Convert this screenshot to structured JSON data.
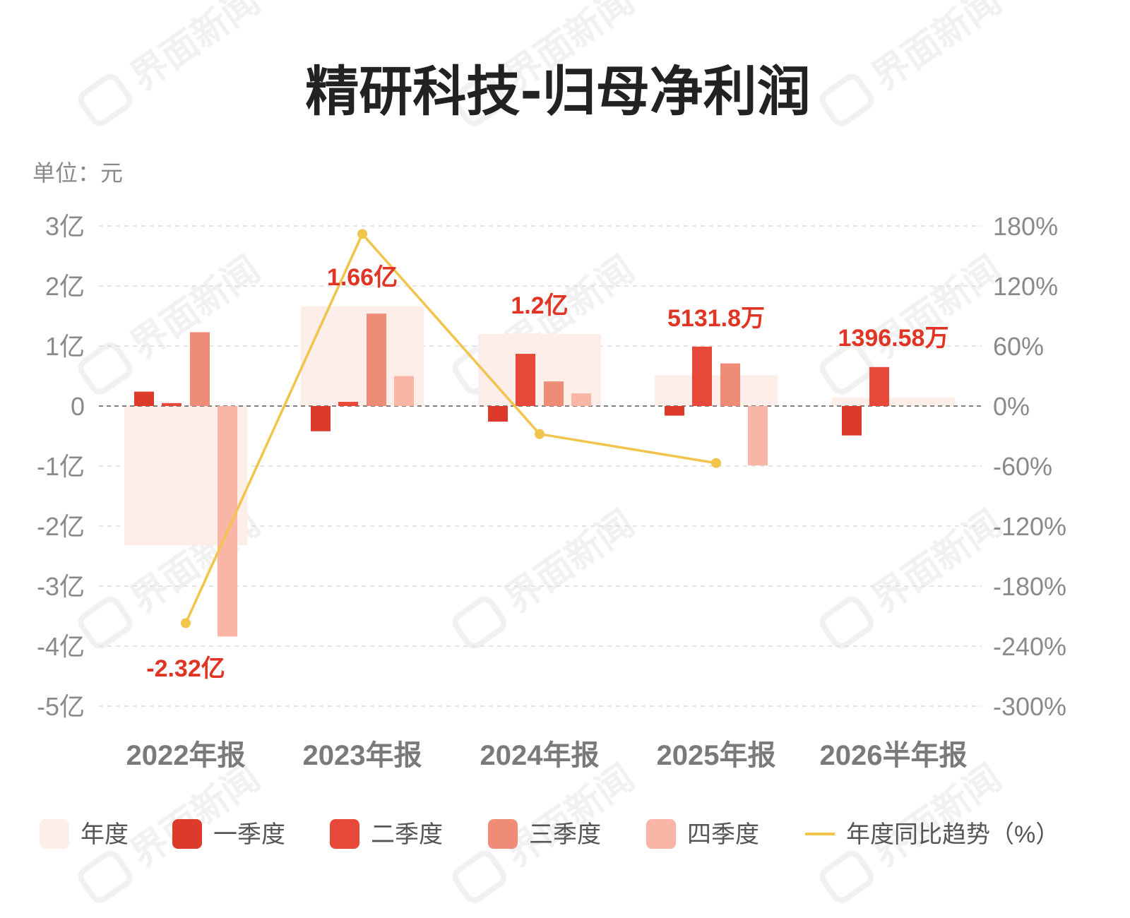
{
  "unit_label": "单位：元",
  "colors": {
    "annual": "#fdeeea",
    "q1": "#dc3a2a",
    "q2": "#e8483a",
    "q3": "#ef8c78",
    "q4": "#f9b5a6",
    "trend": "#f1c44c",
    "label": "#e03524"
  },
  "chart_data": {
    "type": "bar",
    "title": "精研科技-归母净利润",
    "categories": [
      "2022年报",
      "2023年报",
      "2024年报",
      "2025年报",
      "2026半年报"
    ],
    "y_left_ticks": [
      "3亿",
      "2亿",
      "1亿",
      "0",
      "-1亿",
      "-2亿",
      "-3亿",
      "-4亿",
      "-5亿"
    ],
    "y_right_ticks": [
      "180%",
      "120%",
      "60%",
      "0%",
      "-60%",
      "-120%",
      "-180%",
      "-240%",
      "-300%"
    ],
    "ylim_left": [
      -5,
      3
    ],
    "ylim_right": [
      -300,
      180
    ],
    "value_unit": "亿元",
    "series": [
      {
        "name": "年度",
        "key": "annual",
        "values": [
          -2.32,
          1.66,
          1.2,
          0.513,
          0.14
        ]
      },
      {
        "name": "一季度",
        "key": "q1",
        "values": [
          0.24,
          -0.42,
          -0.26,
          -0.16,
          -0.49
        ]
      },
      {
        "name": "二季度",
        "key": "q2",
        "values": [
          0.05,
          0.07,
          0.87,
          0.99,
          0.65
        ]
      },
      {
        "name": "三季度",
        "key": "q3",
        "values": [
          1.23,
          1.54,
          0.41,
          0.71,
          null
        ]
      },
      {
        "name": "四季度",
        "key": "q4",
        "values": [
          -3.84,
          0.5,
          0.21,
          -0.99,
          null
        ]
      }
    ],
    "trend": {
      "name": "年度同比趋势（%）",
      "key": "trend",
      "values": [
        -217,
        172,
        -28,
        -57,
        null
      ]
    },
    "annual_labels": [
      "-2.32亿",
      "1.66亿",
      "1.2亿",
      "5131.8万",
      "1396.58万"
    ],
    "grid": true,
    "legend_position": "bottom"
  },
  "watermark": "界面新闻"
}
